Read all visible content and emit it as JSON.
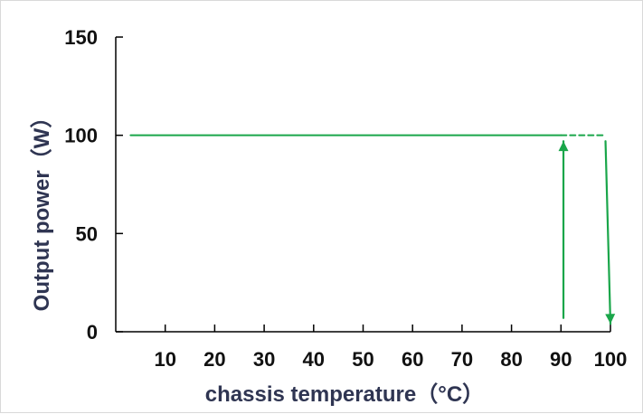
{
  "chart_data": {
    "type": "line",
    "title": "",
    "xlabel": "chassis temperature（°C）",
    "ylabel": "Output power（W）",
    "xlim": [
      0,
      100
    ],
    "ylim": [
      0,
      150
    ],
    "x_ticks": [
      "10",
      "20",
      "30",
      "40",
      "50",
      "60",
      "70",
      "80",
      "90",
      "100"
    ],
    "y_ticks": [
      "0",
      "50",
      "100",
      "150"
    ],
    "grid": false,
    "legend": "none",
    "series": [
      {
        "style": "solid",
        "x": [
          3,
          90
        ],
        "y": [
          100,
          100
        ]
      },
      {
        "style": "dashed",
        "x": [
          90,
          99
        ],
        "y": [
          100,
          100
        ]
      }
    ],
    "annotations": [
      {
        "type": "arrow",
        "direction": "up",
        "x": 90.5,
        "from_y": 7,
        "to_y": 97
      },
      {
        "type": "arrow",
        "direction": "down",
        "x_from": 99,
        "x_to": 100,
        "from_y": 97,
        "to_y": 4
      }
    ],
    "colors": {
      "line": "#1aa64a",
      "axis": "#000000",
      "tick_text": "#111111",
      "axis_title": "#2f3552"
    }
  }
}
